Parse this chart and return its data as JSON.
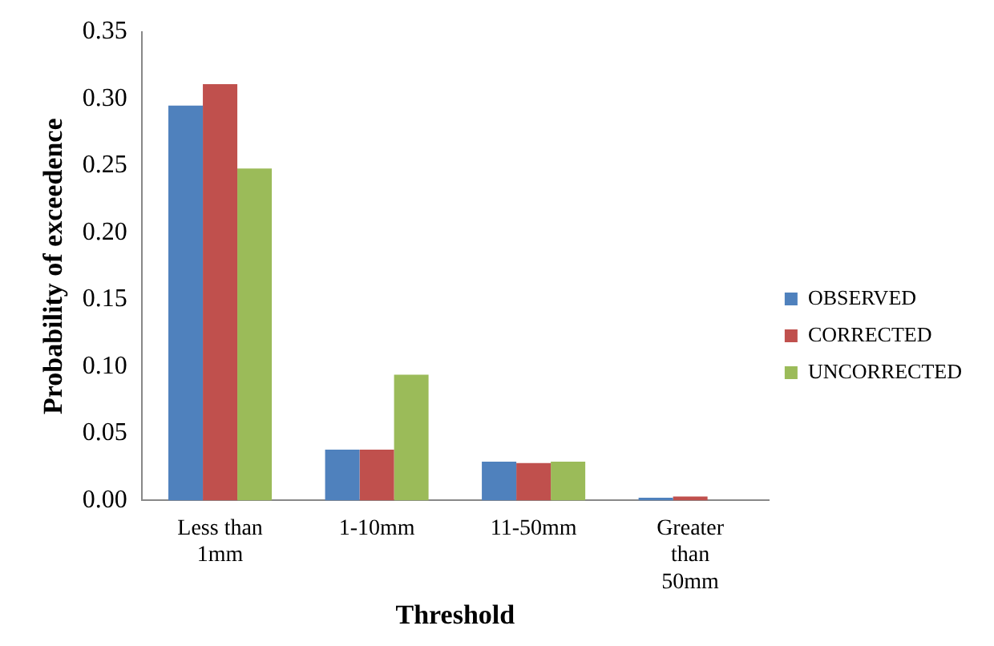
{
  "chart_data": {
    "type": "bar",
    "xlabel": "Threshold",
    "ylabel": "Probability of exceedence",
    "categories": [
      "Less than 1mm",
      "1-10mm",
      "11-50mm",
      "Greater than 50mm"
    ],
    "series": [
      {
        "name": "OBSERVED",
        "color": "#4f81bd",
        "values": [
          0.295,
          0.038,
          0.029,
          0.002
        ]
      },
      {
        "name": "CORRECTED",
        "color": "#c0504d",
        "values": [
          0.311,
          0.038,
          0.028,
          0.003
        ]
      },
      {
        "name": "UNCORRECTED",
        "color": "#9bbb59",
        "values": [
          0.248,
          0.094,
          0.029,
          0
        ]
      }
    ],
    "ylim": [
      0,
      0.35
    ],
    "yticks": [
      {
        "value": 0,
        "label": "0.00"
      },
      {
        "value": 0.05,
        "label": "0.05"
      },
      {
        "value": 0.1,
        "label": "0.10"
      },
      {
        "value": 0.15,
        "label": "0.15"
      },
      {
        "value": 0.2,
        "label": "0.20"
      },
      {
        "value": 0.25,
        "label": "0.25"
      },
      {
        "value": 0.3,
        "label": "0.30"
      },
      {
        "value": 0.35,
        "label": "0.35"
      }
    ],
    "grid": false,
    "legend": "right"
  }
}
